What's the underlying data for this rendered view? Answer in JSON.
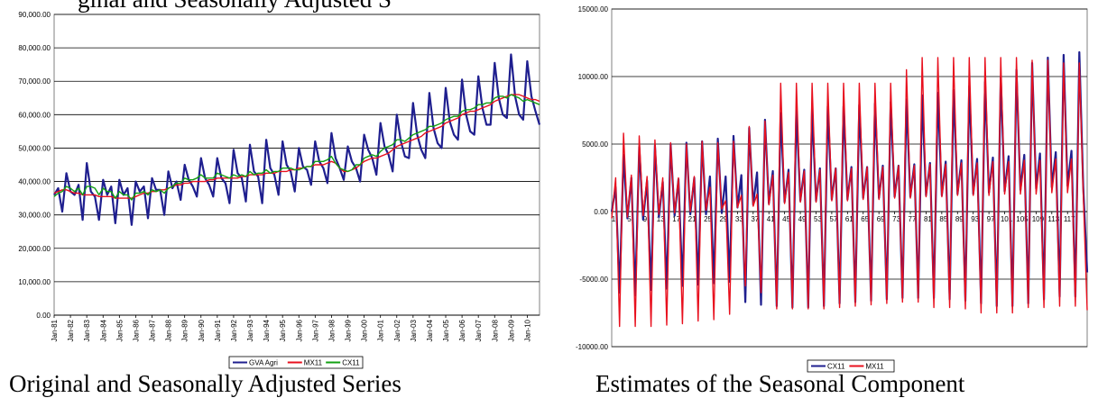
{
  "left_title_partial": "ginal and Seasonally Adjusted S",
  "left_caption": "Original and Seasonally Adjusted Series",
  "right_caption": "Estimates of the Seasonal Component",
  "colors": {
    "navy": "#1f1f8f",
    "red": "#e8101e",
    "green": "#12a012"
  },
  "chart_data": [
    {
      "type": "line",
      "title": "Original and Seasonally Adjusted Series",
      "y_ticks": [
        "0.00",
        "10,000.00",
        "20,000.00",
        "30,000.00",
        "40,000.00",
        "50,000.00",
        "60,000.00",
        "70,000.00",
        "80,000.00",
        "90,000.00"
      ],
      "ylim": [
        0,
        90000
      ],
      "x_ticks": [
        "Jan-81",
        "Jan-82",
        "Jan-83",
        "Jan-84",
        "Jan-85",
        "Jan-86",
        "Jan-87",
        "Jan-88",
        "Jan-89",
        "Jan-90",
        "Jan-91",
        "Jan-92",
        "Jan-93",
        "Jan-94",
        "Jan-95",
        "Jan-96",
        "Jan-97",
        "Jan-98",
        "Jan-99",
        "Jan-00",
        "Jan-01",
        "Jan-02",
        "Jan-03",
        "Jan-04",
        "Jan-05",
        "Jan-06",
        "Jan-07",
        "Jan-08",
        "Jan-09",
        "Jan-10"
      ],
      "legend": [
        "GVA Agri",
        "MX11",
        "CX11"
      ],
      "series": [
        {
          "name": "GVA Agri",
          "color": "#1f1f8f",
          "values": [
            36000,
            38000,
            31000,
            42500,
            37000,
            36000,
            39000,
            28500,
            45500,
            37000,
            35500,
            28500,
            40500,
            36000,
            38500,
            27500,
            40500,
            36000,
            38000,
            27000,
            40000,
            37000,
            38500,
            29000,
            41000,
            37500,
            37500,
            30000,
            43000,
            38000,
            40000,
            34500,
            45000,
            40500,
            38500,
            35500,
            47000,
            41000,
            39000,
            35500,
            47000,
            41000,
            39500,
            33500,
            49500,
            42500,
            41000,
            34000,
            51000,
            43000,
            41500,
            33500,
            52500,
            44000,
            42000,
            36000,
            52000,
            45000,
            43000,
            37000,
            50000,
            44500,
            43500,
            39000,
            52000,
            46000,
            44000,
            39500,
            54500,
            47000,
            44000,
            40500,
            50500,
            46000,
            44000,
            40000,
            54000,
            49500,
            47000,
            42000,
            57500,
            50500,
            48000,
            43000,
            60000,
            52000,
            47500,
            47000,
            63500,
            54000,
            49500,
            47000,
            66500,
            56000,
            51500,
            50000,
            68000,
            58000,
            54000,
            52500,
            70500,
            60000,
            55000,
            54000,
            71500,
            62000,
            57000,
            57000,
            75500,
            65000,
            60000,
            59000,
            78000,
            65500,
            60000,
            58500,
            76000,
            65500,
            61000,
            57000
          ]
        },
        {
          "name": "MX11",
          "color": "#e8101e",
          "values": [
            36500,
            37000,
            37500,
            37500,
            37000,
            36500,
            36500,
            36000,
            36000,
            36000,
            36000,
            35500,
            35500,
            35500,
            35500,
            35000,
            35000,
            35000,
            35000,
            35000,
            35500,
            36000,
            36500,
            36500,
            37000,
            37000,
            37500,
            37500,
            38000,
            38500,
            39000,
            39000,
            39500,
            39500,
            40000,
            40000,
            40000,
            40000,
            40500,
            40500,
            41000,
            41000,
            41000,
            41000,
            41000,
            41000,
            41500,
            41500,
            42000,
            42000,
            42000,
            42000,
            42500,
            42500,
            42500,
            43000,
            43000,
            43000,
            43500,
            43500,
            44000,
            44000,
            44500,
            44500,
            45000,
            45000,
            45000,
            45500,
            46000,
            45500,
            44000,
            43000,
            43000,
            43500,
            44000,
            45000,
            46000,
            46500,
            47000,
            47000,
            47500,
            48000,
            48500,
            49500,
            50500,
            51000,
            51500,
            52000,
            52500,
            53000,
            53500,
            54500,
            55000,
            55500,
            56000,
            56500,
            57500,
            58000,
            58500,
            59000,
            60000,
            60500,
            61000,
            61000,
            61500,
            62000,
            62500,
            63000,
            64000,
            64500,
            65000,
            65500,
            66000,
            66000,
            66000,
            65500,
            65000,
            64500,
            64500,
            64000
          ]
        },
        {
          "name": "CX11",
          "color": "#12a012",
          "values": [
            35500,
            36500,
            37000,
            38500,
            38000,
            37000,
            38000,
            36000,
            38500,
            38500,
            38000,
            36000,
            38000,
            37000,
            37000,
            35000,
            37000,
            36000,
            36000,
            34500,
            36500,
            36500,
            37000,
            36000,
            37500,
            37000,
            37500,
            36500,
            38000,
            38500,
            39500,
            39500,
            41000,
            40500,
            40500,
            41000,
            42000,
            41000,
            41000,
            41000,
            42500,
            42000,
            41500,
            41000,
            42000,
            41500,
            42000,
            41500,
            43000,
            42000,
            42500,
            42500,
            43500,
            42500,
            43000,
            43000,
            44000,
            44000,
            44000,
            43500,
            43500,
            44000,
            44500,
            44500,
            46000,
            46000,
            46000,
            46500,
            47500,
            45500,
            44000,
            43500,
            43000,
            43500,
            45000,
            45000,
            47000,
            47500,
            48000,
            47500,
            49000,
            50000,
            50500,
            51000,
            52500,
            52500,
            52000,
            53000,
            54000,
            54500,
            55000,
            55500,
            56500,
            56500,
            57000,
            57500,
            58500,
            59000,
            59500,
            59500,
            61000,
            61500,
            61500,
            62000,
            63000,
            63000,
            63500,
            63500,
            65000,
            65500,
            65500,
            65000,
            66000,
            65500,
            65000,
            64000,
            64500,
            64000,
            63500,
            63000
          ]
        }
      ]
    },
    {
      "type": "line",
      "title": "Estimates of the Seasonal Component",
      "y_ticks": [
        "-10000.00",
        "-5000.00",
        "0.00",
        "5000.00",
        "10000.00",
        "15000.00"
      ],
      "ylim": [
        -10000,
        15000
      ],
      "x_ticks": [
        "1",
        "5",
        "9",
        "13",
        "17",
        "21",
        "25",
        "29",
        "33",
        "37",
        "41",
        "45",
        "49",
        "53",
        "57",
        "61",
        "65",
        "69",
        "73",
        "77",
        "81",
        "85",
        "89",
        "93",
        "97",
        "101",
        "105",
        "109",
        "113",
        "117"
      ],
      "legend": [
        "CX11",
        "MX11"
      ],
      "series": [
        {
          "name": "CX11",
          "color": "#1f1f8f",
          "values": [
            0,
            1800,
            -6000,
            4200,
            -500,
            2500,
            -6200,
            4800,
            -600,
            2300,
            -5800,
            4900,
            -400,
            2200,
            -5700,
            5000,
            -300,
            2400,
            -5500,
            5100,
            -200,
            2500,
            -5400,
            5200,
            -200,
            2600,
            -5300,
            5400,
            -100,
            2600,
            -5200,
            5600,
            300,
            2700,
            -6700,
            6200,
            500,
            2900,
            -6900,
            6800,
            600,
            3000,
            -7000,
            7300,
            700,
            3100,
            -7100,
            7500,
            800,
            3100,
            -7100,
            7600,
            800,
            3200,
            -7000,
            7800,
            900,
            3200,
            -6800,
            7800,
            900,
            3300,
            -6700,
            7900,
            1000,
            3300,
            -6600,
            8000,
            1000,
            3400,
            -6500,
            8100,
            1100,
            3400,
            -6400,
            8300,
            1100,
            3500,
            -6400,
            8600,
            1200,
            3600,
            -6400,
            8800,
            1200,
            3700,
            -6500,
            9000,
            1300,
            3800,
            -6600,
            9300,
            1300,
            3900,
            -6800,
            9600,
            1400,
            4000,
            -7000,
            10000,
            1500,
            4100,
            -7000,
            10500,
            1600,
            4200,
            -6800,
            11000,
            1700,
            4300,
            -6500,
            11400,
            1800,
            4400,
            -6300,
            11600,
            1900,
            4500,
            -6300,
            11800,
            1900,
            -4500
          ]
        },
        {
          "name": "MX11",
          "color": "#e8101e",
          "values": [
            -500,
            2500,
            -8500,
            5800,
            -400,
            2700,
            -8500,
            5600,
            -300,
            2600,
            -8500,
            5300,
            -200,
            2500,
            -8400,
            5100,
            -100,
            2500,
            -8300,
            5000,
            0,
            2600,
            -8100,
            5200,
            100,
            1800,
            -8000,
            5100,
            200,
            800,
            -7600,
            5200,
            300,
            1200,
            -5500,
            6300,
            400,
            1300,
            -6000,
            6700,
            500,
            2700,
            -7200,
            9500,
            600,
            2900,
            -7200,
            9500,
            700,
            3000,
            -7200,
            9500,
            700,
            3100,
            -7200,
            9500,
            800,
            3200,
            -7100,
            9500,
            800,
            3200,
            -7000,
            9500,
            900,
            3300,
            -6900,
            9500,
            900,
            3300,
            -6800,
            9500,
            1000,
            3400,
            -6700,
            10500,
            1000,
            3400,
            -6700,
            11400,
            1100,
            3500,
            -7100,
            11400,
            1100,
            3500,
            -7100,
            11400,
            1200,
            3600,
            -7200,
            11400,
            1200,
            3600,
            -7500,
            11400,
            1200,
            3700,
            -7500,
            11400,
            1300,
            3700,
            -7500,
            11400,
            1300,
            3800,
            -7100,
            11200,
            1300,
            3800,
            -7100,
            11200,
            1400,
            3900,
            -7000,
            11000,
            1400,
            3900,
            -7000,
            11000,
            1400,
            -7300
          ]
        }
      ]
    }
  ]
}
